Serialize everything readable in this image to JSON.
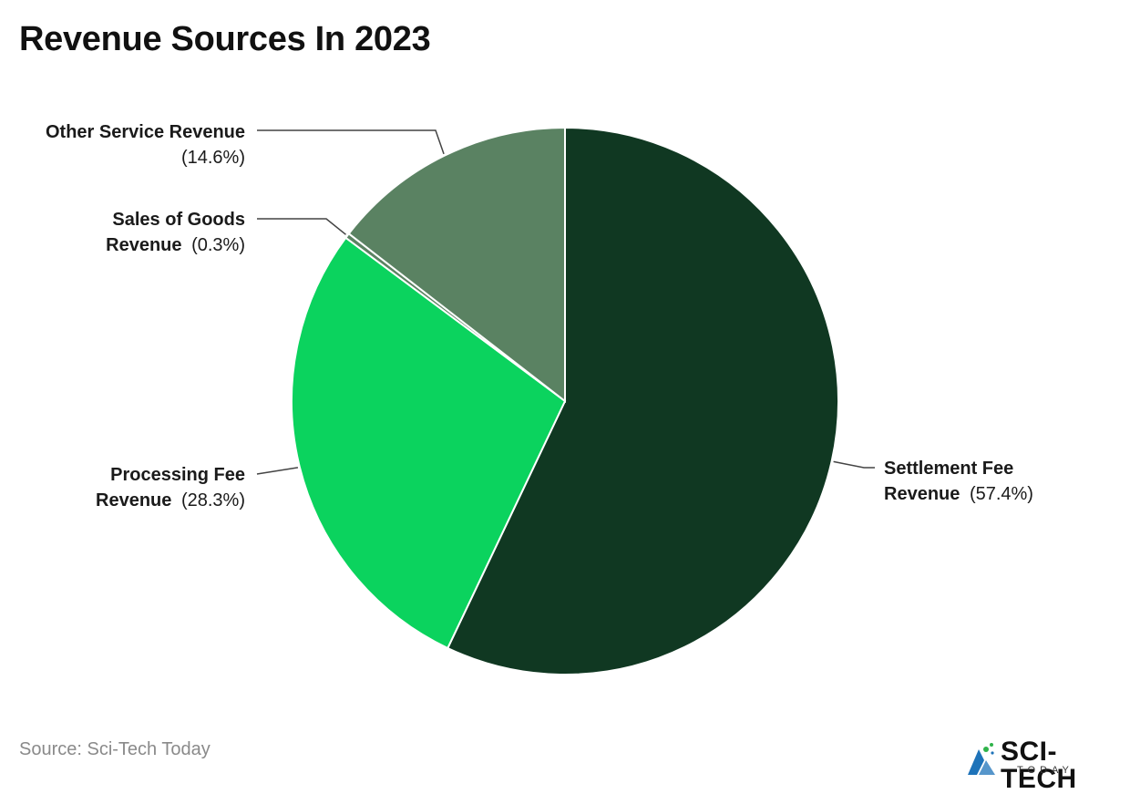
{
  "chart_data": {
    "type": "pie",
    "title": "Revenue Sources In 2023",
    "slices": [
      {
        "name_line1": "Settlement Fee",
        "name_line2": "Revenue",
        "value": 57.4,
        "pct_label": "(57.4%)",
        "color": "#103822"
      },
      {
        "name_line1": "Processing Fee",
        "name_line2": "Revenue",
        "value": 28.3,
        "pct_label": "(28.3%)",
        "color": "#0bd35e"
      },
      {
        "name_line1": "Sales of Goods",
        "name_line2": "Revenue",
        "value": 0.3,
        "pct_label": "(0.3%)",
        "color": "#5b8262"
      },
      {
        "name_line1": "Other Service Revenue",
        "name_line2": "",
        "value": 14.6,
        "pct_label": "(14.6%)",
        "color": "#5a8262"
      }
    ]
  },
  "footer": {
    "source": "Source: Sci-Tech Today",
    "logo_text": "SCI-TECH",
    "logo_sub": "TODAY"
  },
  "colors": {
    "leader": "#444444",
    "logo_blue": "#1e73b9",
    "logo_green": "#2fb34a"
  }
}
